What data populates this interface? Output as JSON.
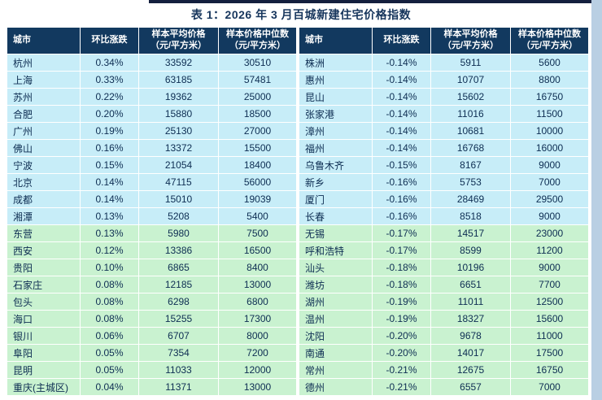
{
  "title": "表 1：2026 年 3 月百城新建住宅价格指数",
  "colors": {
    "header_bg": "#12395f",
    "header_text": "#ffffff",
    "row_cyan": "#c7edf8",
    "row_green": "#c9f2d0",
    "body_text": "#0d2d52",
    "title_text": "#17365d",
    "top_bar": "#141f3e",
    "edge_strip": "#b9cfe3"
  },
  "table": {
    "headers": [
      {
        "line1": "城市"
      },
      {
        "line1": "环比涨跌"
      },
      {
        "line1": "样本平均价格",
        "line2": "（元/平方米）"
      },
      {
        "line1": "样本价格中位数",
        "line2": "（元/平方米）"
      }
    ],
    "cyan_row_count": 10,
    "left_rows": [
      [
        "杭州",
        "0.34%",
        "33592",
        "30510"
      ],
      [
        "上海",
        "0.33%",
        "63185",
        "57481"
      ],
      [
        "苏州",
        "0.22%",
        "19362",
        "25000"
      ],
      [
        "合肥",
        "0.20%",
        "15880",
        "18500"
      ],
      [
        "广州",
        "0.19%",
        "25130",
        "27000"
      ],
      [
        "佛山",
        "0.16%",
        "13372",
        "15500"
      ],
      [
        "宁波",
        "0.15%",
        "21054",
        "18400"
      ],
      [
        "北京",
        "0.14%",
        "47115",
        "56000"
      ],
      [
        "成都",
        "0.14%",
        "15010",
        "19039"
      ],
      [
        "湘潭",
        "0.13%",
        "5208",
        "5400"
      ],
      [
        "东营",
        "0.13%",
        "5980",
        "7500"
      ],
      [
        "西安",
        "0.12%",
        "13386",
        "16500"
      ],
      [
        "贵阳",
        "0.10%",
        "6865",
        "8400"
      ],
      [
        "石家庄",
        "0.08%",
        "12185",
        "13000"
      ],
      [
        "包头",
        "0.08%",
        "6298",
        "6800"
      ],
      [
        "海口",
        "0.08%",
        "15255",
        "17300"
      ],
      [
        "银川",
        "0.06%",
        "6707",
        "8000"
      ],
      [
        "阜阳",
        "0.05%",
        "7354",
        "7200"
      ],
      [
        "昆明",
        "0.05%",
        "11033",
        "12000"
      ],
      [
        "重庆(主城区)",
        "0.04%",
        "11371",
        "13000"
      ]
    ],
    "right_rows": [
      [
        "株洲",
        "-0.14%",
        "5911",
        "5600"
      ],
      [
        "惠州",
        "-0.14%",
        "10707",
        "8800"
      ],
      [
        "昆山",
        "-0.14%",
        "15602",
        "16750"
      ],
      [
        "张家港",
        "-0.14%",
        "11016",
        "11500"
      ],
      [
        "漳州",
        "-0.14%",
        "10681",
        "10000"
      ],
      [
        "福州",
        "-0.14%",
        "16768",
        "16000"
      ],
      [
        "乌鲁木齐",
        "-0.15%",
        "8167",
        "9000"
      ],
      [
        "新乡",
        "-0.16%",
        "5753",
        "7000"
      ],
      [
        "厦门",
        "-0.16%",
        "28469",
        "29500"
      ],
      [
        "长春",
        "-0.16%",
        "8518",
        "9000"
      ],
      [
        "无锡",
        "-0.17%",
        "14517",
        "23000"
      ],
      [
        "呼和浩特",
        "-0.17%",
        "8599",
        "11200"
      ],
      [
        "汕头",
        "-0.18%",
        "10196",
        "9000"
      ],
      [
        "潍坊",
        "-0.18%",
        "6651",
        "7700"
      ],
      [
        "湖州",
        "-0.19%",
        "11011",
        "12500"
      ],
      [
        "温州",
        "-0.19%",
        "18327",
        "15600"
      ],
      [
        "沈阳",
        "-0.20%",
        "9678",
        "11000"
      ],
      [
        "南通",
        "-0.20%",
        "14017",
        "17500"
      ],
      [
        "常州",
        "-0.21%",
        "12675",
        "16750"
      ],
      [
        "德州",
        "-0.21%",
        "6557",
        "7000"
      ]
    ]
  }
}
